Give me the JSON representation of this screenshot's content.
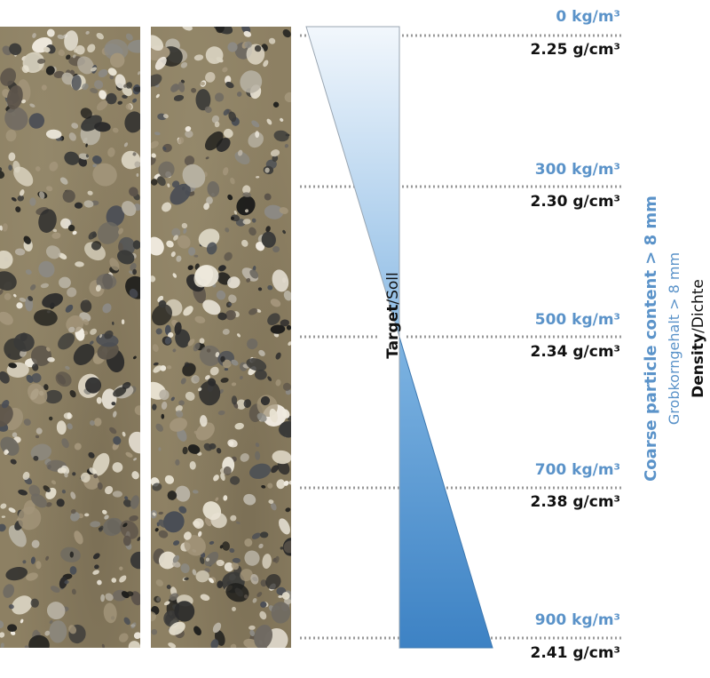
{
  "levels": [
    {
      "content": "0 kg/m³",
      "density": "2.25 g/cm³"
    },
    {
      "content": "300 kg/m³",
      "density": "2.30 g/cm³"
    },
    {
      "content": "500 kg/m³",
      "density": "2.34 g/cm³"
    },
    {
      "content": "700 kg/m³",
      "density": "2.38 g/cm³"
    },
    {
      "content": "900 kg/m³",
      "density": "2.41 g/cm³"
    }
  ],
  "target_label": {
    "en": "Target",
    "sep": "/",
    "de": "Soll"
  },
  "axis_label_en": "Coarse particle content > 8 mm",
  "axis_label_de": "Grobkorngehalt > 8 mm",
  "density_label": {
    "en": "Density",
    "sep": "/",
    "de": "Dichte"
  },
  "colors": {
    "accent": "#5b93c9",
    "text": "#111111",
    "dots": "#999999"
  }
}
